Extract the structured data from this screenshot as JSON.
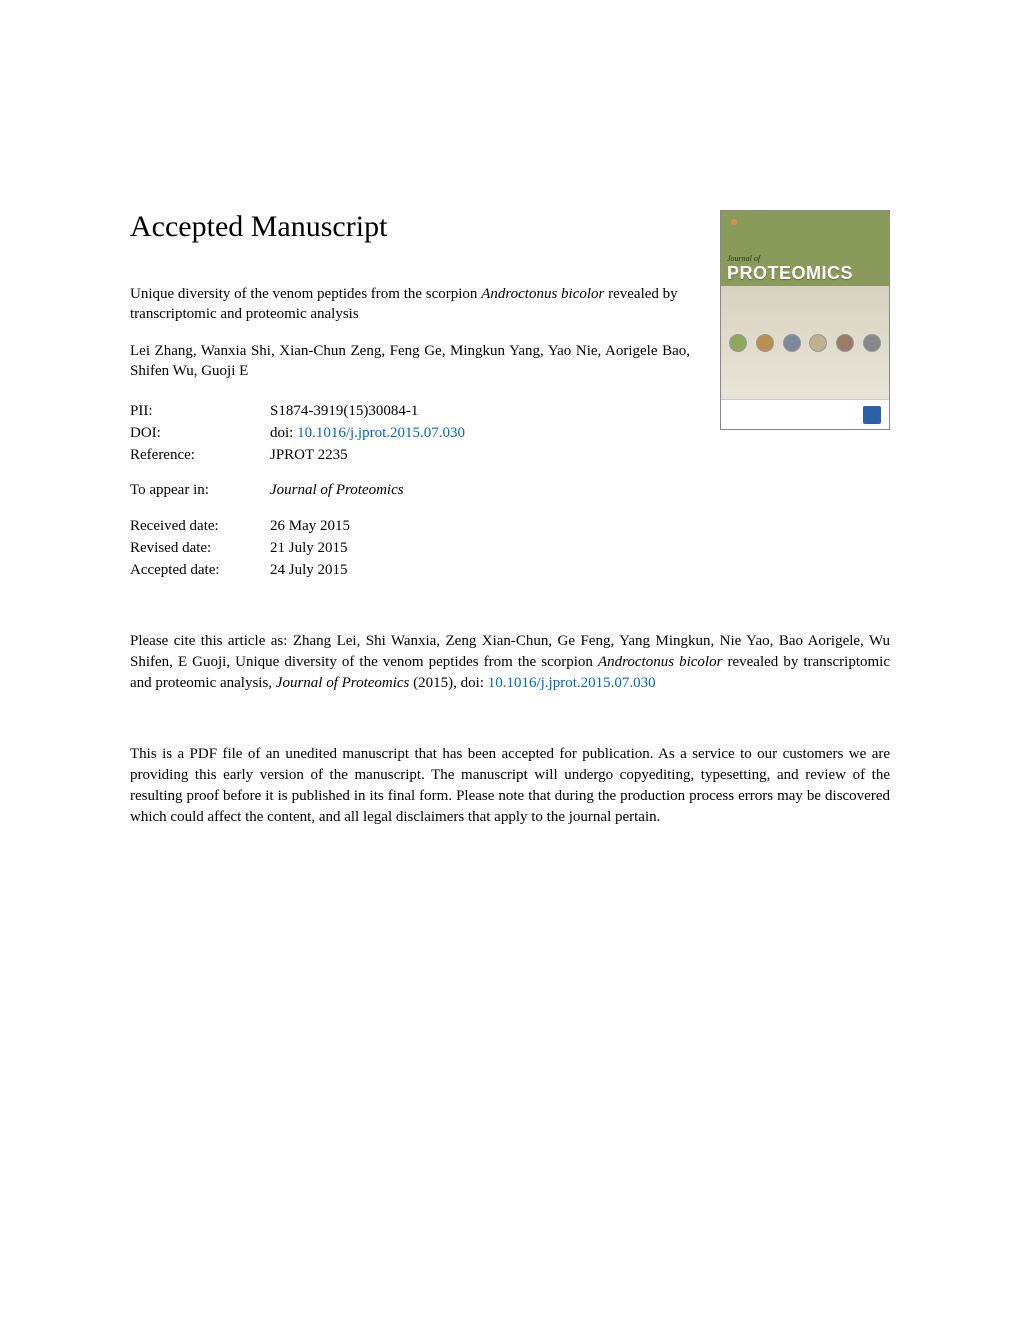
{
  "heading": "Accepted Manuscript",
  "title_part1": "Unique diversity of the venom peptides from the scorpion ",
  "title_italic": "Androctonus bicolor",
  "title_part2": " revealed by transcriptomic and proteomic analysis",
  "authors": "Lei Zhang, Wanxia Shi, Xian-Chun Zeng, Feng Ge, Mingkun Yang, Yao Nie, Aorigele Bao, Shifen Wu, Guoji E",
  "meta": {
    "pii_label": "PII:",
    "pii_value": "S1874-3919(15)30084-1",
    "doi_label": "DOI:",
    "doi_prefix": "doi: ",
    "doi_link": "10.1016/j.jprot.2015.07.030",
    "ref_label": "Reference:",
    "ref_value": "JPROT 2235",
    "appear_label": "To appear in:",
    "appear_value": "Journal of Proteomics",
    "received_label": "Received date:",
    "received_value": "26 May 2015",
    "revised_label": "Revised date:",
    "revised_value": "21 July 2015",
    "accepted_label": "Accepted date:",
    "accepted_value": "24 July 2015"
  },
  "citation": {
    "prefix": "Please cite this article as: Zhang Lei, Shi Wanxia, Zeng Xian-Chun, Ge Feng, Yang Mingkun, Nie Yao, Bao Aorigele, Wu Shifen, E Guoji, Unique diversity of the venom peptides from the scorpion ",
    "italic1": "Androctonus bicolor",
    "mid": " revealed by transcriptomic and proteomic analysis, ",
    "italic2": "Journal of Proteomics",
    "year": " (2015), doi: ",
    "link": "10.1016/j.jprot.2015.07.030"
  },
  "disclaimer": "This is a PDF file of an unedited manuscript that has been accepted for publication. As a service to our customers we are providing this early version of the manuscript. The manuscript will undergo copyediting, typesetting, and review of the resulting proof before it is published in its final form. Please note that during the production process errors may be discovered which could affect the content, and all legal disclaimers that apply to the journal pertain.",
  "cover": {
    "label": "Journal of",
    "name": "PROTEOMICS",
    "circles": [
      "#8fa85c",
      "#b89050",
      "#7a8a9a",
      "#c0b090",
      "#9a7a6a",
      "#888888"
    ]
  },
  "colors": {
    "link": "#0066cc",
    "text": "#000000",
    "cover_green": "#8a9a5b"
  }
}
